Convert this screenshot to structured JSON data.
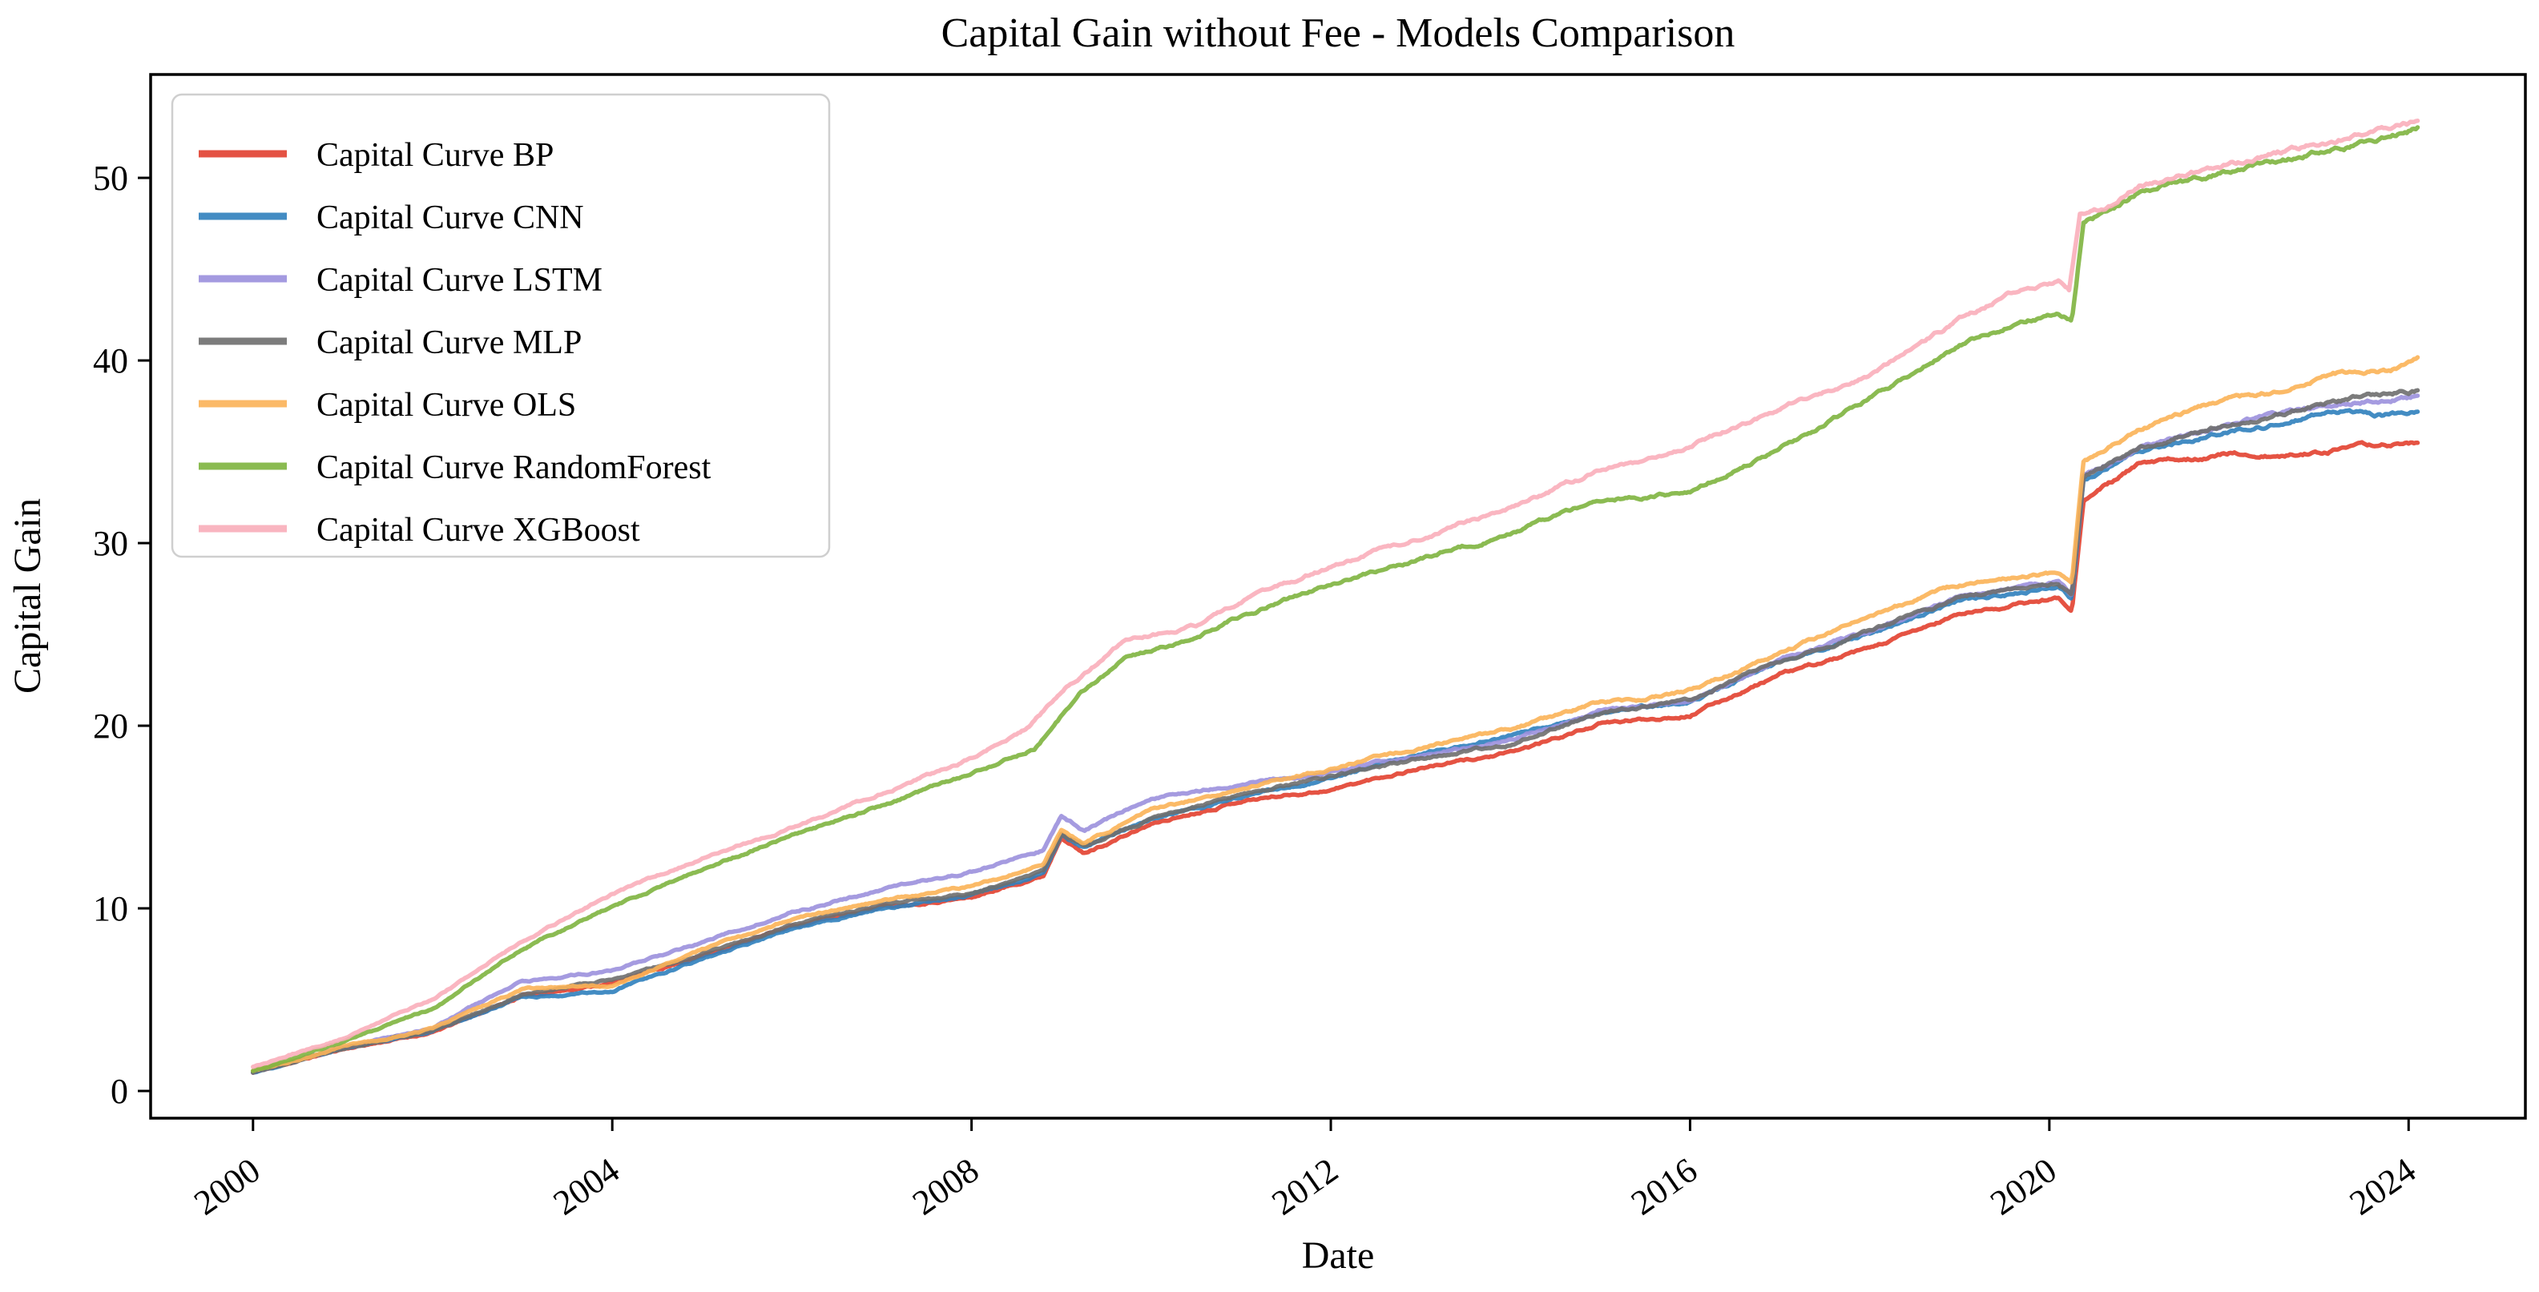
{
  "chart_data": {
    "type": "line",
    "title": "Capital Gain without Fee - Models Comparison",
    "xlabel": "Date",
    "ylabel": "Capital Gain",
    "xlim": [
      1998.86,
      2025.3
    ],
    "ylim": [
      -1.49,
      55.66
    ],
    "xticks": [
      2000,
      2004,
      2008,
      2012,
      2016,
      2020,
      2024
    ],
    "yticks": [
      0,
      10,
      20,
      30,
      40,
      50
    ],
    "x_unit": "year",
    "grid": false,
    "legend_position": "upper left",
    "background_color": "#ffffff",
    "spine_color": "#000000",
    "legend_border_color": "#cfcfcf",
    "series": [
      {
        "name": "Capital Curve BP",
        "color": "#e2402f",
        "points": [
          [
            2000,
            1.0
          ],
          [
            2001,
            2.3
          ],
          [
            2002,
            3.2
          ],
          [
            2003,
            5.2
          ],
          [
            2004,
            5.9
          ],
          [
            2005,
            7.4
          ],
          [
            2006,
            9.0
          ],
          [
            2007,
            10.1
          ],
          [
            2008,
            10.6
          ],
          [
            2008.8,
            11.8
          ],
          [
            2009.0,
            14.0
          ],
          [
            2009.25,
            13.0
          ],
          [
            2010,
            14.6
          ],
          [
            2011,
            15.9
          ],
          [
            2012,
            16.5
          ],
          [
            2013,
            17.7
          ],
          [
            2014,
            18.5
          ],
          [
            2015,
            20.1
          ],
          [
            2016,
            20.6
          ],
          [
            2017,
            22.8
          ],
          [
            2018,
            24.2
          ],
          [
            2019,
            26.1
          ],
          [
            2020.1,
            27.0
          ],
          [
            2020.25,
            26.4
          ],
          [
            2020.38,
            32.4
          ],
          [
            2021,
            34.3
          ],
          [
            2022,
            34.9
          ],
          [
            2022.6,
            34.7
          ],
          [
            2023,
            35.0
          ],
          [
            2023.5,
            35.3
          ],
          [
            2024.1,
            35.5
          ]
        ]
      },
      {
        "name": "Capital Curve CNN",
        "color": "#2f80bd",
        "points": [
          [
            2000,
            1.0
          ],
          [
            2001,
            2.3
          ],
          [
            2002,
            3.3
          ],
          [
            2003,
            5.1
          ],
          [
            2004,
            5.5
          ],
          [
            2005,
            7.2
          ],
          [
            2006,
            8.9
          ],
          [
            2007,
            10.0
          ],
          [
            2008,
            10.7
          ],
          [
            2008.8,
            11.9
          ],
          [
            2009.0,
            14.0
          ],
          [
            2009.25,
            13.3
          ],
          [
            2010,
            14.9
          ],
          [
            2011,
            16.1
          ],
          [
            2012,
            17.1
          ],
          [
            2013,
            18.5
          ],
          [
            2014,
            19.4
          ],
          [
            2015,
            20.7
          ],
          [
            2016,
            21.3
          ],
          [
            2017,
            23.5
          ],
          [
            2018,
            25.0
          ],
          [
            2019,
            26.8
          ],
          [
            2020.1,
            27.6
          ],
          [
            2020.25,
            27.0
          ],
          [
            2020.38,
            33.5
          ],
          [
            2021,
            35.0
          ],
          [
            2022,
            36.1
          ],
          [
            2022.4,
            36.4
          ],
          [
            2023,
            37.0
          ],
          [
            2023.3,
            37.2
          ],
          [
            2023.7,
            37.0
          ],
          [
            2024.1,
            37.3
          ]
        ]
      },
      {
        "name": "Capital Curve LSTM",
        "color": "#9b90dd",
        "points": [
          [
            2000,
            1.1
          ],
          [
            2001,
            2.4
          ],
          [
            2002,
            3.5
          ],
          [
            2003,
            6.0
          ],
          [
            2004,
            6.6
          ],
          [
            2005,
            8.1
          ],
          [
            2006,
            9.8
          ],
          [
            2007,
            11.0
          ],
          [
            2008,
            12.0
          ],
          [
            2008.8,
            13.2
          ],
          [
            2009.0,
            15.1
          ],
          [
            2009.25,
            14.3
          ],
          [
            2010,
            16.0
          ],
          [
            2011,
            16.8
          ],
          [
            2012,
            17.5
          ],
          [
            2013,
            18.4
          ],
          [
            2014,
            19.2
          ],
          [
            2015,
            20.8
          ],
          [
            2016,
            21.4
          ],
          [
            2017,
            23.6
          ],
          [
            2018,
            25.2
          ],
          [
            2019,
            27.0
          ],
          [
            2020.1,
            27.8
          ],
          [
            2020.25,
            27.2
          ],
          [
            2020.38,
            33.7
          ],
          [
            2021,
            35.2
          ],
          [
            2022,
            36.5
          ],
          [
            2022.4,
            36.9
          ],
          [
            2023,
            37.5
          ],
          [
            2023.4,
            37.8
          ],
          [
            2024.1,
            38.0
          ]
        ]
      },
      {
        "name": "Capital Curve MLP",
        "color": "#6e6e6e",
        "points": [
          [
            2000,
            1.0
          ],
          [
            2001,
            2.3
          ],
          [
            2002,
            3.3
          ],
          [
            2003,
            5.3
          ],
          [
            2004,
            6.1
          ],
          [
            2005,
            7.5
          ],
          [
            2006,
            9.1
          ],
          [
            2007,
            10.2
          ],
          [
            2008,
            10.8
          ],
          [
            2008.8,
            12.0
          ],
          [
            2009.0,
            14.1
          ],
          [
            2009.25,
            13.4
          ],
          [
            2010,
            14.9
          ],
          [
            2011,
            16.2
          ],
          [
            2012,
            17.2
          ],
          [
            2013,
            18.2
          ],
          [
            2014,
            19.0
          ],
          [
            2015,
            20.7
          ],
          [
            2016,
            21.4
          ],
          [
            2017,
            23.5
          ],
          [
            2018,
            25.2
          ],
          [
            2019,
            27.0
          ],
          [
            2020.1,
            27.8
          ],
          [
            2020.25,
            27.2
          ],
          [
            2020.38,
            33.6
          ],
          [
            2021,
            35.3
          ],
          [
            2022,
            36.5
          ],
          [
            2022.4,
            36.9
          ],
          [
            2023,
            37.6
          ],
          [
            2023.5,
            38.1
          ],
          [
            2024.1,
            38.3
          ]
        ]
      },
      {
        "name": "Capital Curve OLS",
        "color": "#fbb257",
        "points": [
          [
            2000,
            1.1
          ],
          [
            2001,
            2.4
          ],
          [
            2002,
            3.4
          ],
          [
            2003,
            5.6
          ],
          [
            2004,
            5.8
          ],
          [
            2005,
            7.7
          ],
          [
            2006,
            9.4
          ],
          [
            2007,
            10.4
          ],
          [
            2008,
            11.2
          ],
          [
            2008.8,
            12.4
          ],
          [
            2009.0,
            14.3
          ],
          [
            2009.25,
            13.6
          ],
          [
            2010,
            15.4
          ],
          [
            2011,
            16.5
          ],
          [
            2012,
            17.7
          ],
          [
            2013,
            18.8
          ],
          [
            2014,
            19.8
          ],
          [
            2015,
            21.3
          ],
          [
            2015.5,
            21.4
          ],
          [
            2016,
            21.9
          ],
          [
            2017,
            23.9
          ],
          [
            2018,
            26.0
          ],
          [
            2019,
            27.7
          ],
          [
            2020.1,
            28.4
          ],
          [
            2020.25,
            27.8
          ],
          [
            2020.38,
            34.4
          ],
          [
            2021,
            36.2
          ],
          [
            2022,
            37.9
          ],
          [
            2022.4,
            38.2
          ],
          [
            2023,
            39.1
          ],
          [
            2023.4,
            39.4
          ],
          [
            2023.8,
            39.5
          ],
          [
            2024.1,
            40.1
          ]
        ]
      },
      {
        "name": "Capital Curve RandomForest",
        "color": "#7eb43f",
        "points": [
          [
            2000,
            1.1
          ],
          [
            2001,
            2.7
          ],
          [
            2002,
            4.5
          ],
          [
            2003,
            7.8
          ],
          [
            2004,
            10.1
          ],
          [
            2005,
            12.1
          ],
          [
            2006,
            14.0
          ],
          [
            2007,
            15.6
          ],
          [
            2008,
            17.4
          ],
          [
            2008.7,
            18.8
          ],
          [
            2009.2,
            21.7
          ],
          [
            2009.7,
            23.6
          ],
          [
            2010.5,
            24.8
          ],
          [
            2011,
            26.0
          ],
          [
            2012,
            27.7
          ],
          [
            2013,
            29.1
          ],
          [
            2014,
            30.5
          ],
          [
            2015,
            32.4
          ],
          [
            2015.6,
            32.6
          ],
          [
            2016,
            32.8
          ],
          [
            2017,
            35.2
          ],
          [
            2018,
            37.9
          ],
          [
            2019,
            40.8
          ],
          [
            2019.6,
            42.0
          ],
          [
            2020.1,
            42.6
          ],
          [
            2020.25,
            42.2
          ],
          [
            2020.38,
            47.7
          ],
          [
            2020.7,
            48.1
          ],
          [
            2021,
            49.2
          ],
          [
            2022,
            50.3
          ],
          [
            2023,
            51.4
          ],
          [
            2023.4,
            51.8
          ],
          [
            2024.1,
            52.7
          ]
        ]
      },
      {
        "name": "Capital Curve XGBoost",
        "color": "#f9aeba",
        "points": [
          [
            2000,
            1.3
          ],
          [
            2001,
            2.9
          ],
          [
            2002,
            5.0
          ],
          [
            2003,
            8.2
          ],
          [
            2004,
            10.8
          ],
          [
            2005,
            12.7
          ],
          [
            2006,
            14.4
          ],
          [
            2007,
            16.3
          ],
          [
            2008,
            18.2
          ],
          [
            2008.6,
            19.8
          ],
          [
            2009.1,
            22.3
          ],
          [
            2009.7,
            24.6
          ],
          [
            2010.5,
            25.5
          ],
          [
            2011,
            26.8
          ],
          [
            2012,
            28.7
          ],
          [
            2013,
            30.3
          ],
          [
            2014,
            32.0
          ],
          [
            2015,
            34.0
          ],
          [
            2015.5,
            34.4
          ],
          [
            2016,
            35.3
          ],
          [
            2017,
            37.4
          ],
          [
            2018,
            39.1
          ],
          [
            2019,
            42.2
          ],
          [
            2019.6,
            43.7
          ],
          [
            2020.1,
            44.3
          ],
          [
            2020.22,
            43.8
          ],
          [
            2020.34,
            48.0
          ],
          [
            2020.7,
            48.5
          ],
          [
            2021,
            49.6
          ],
          [
            2022,
            50.7
          ],
          [
            2023,
            51.9
          ],
          [
            2023.4,
            52.3
          ],
          [
            2024.1,
            53.0
          ]
        ]
      }
    ]
  }
}
